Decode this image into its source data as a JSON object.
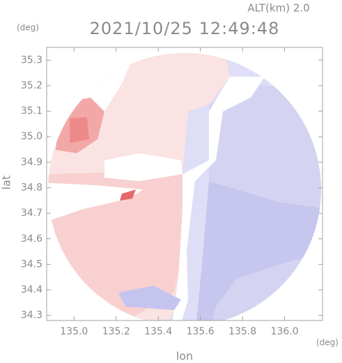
{
  "chart_data": {
    "type": "map",
    "title": "2021/10/25 12:49:48",
    "subtitle": "ALT(km) 2.0",
    "x_label": "lon",
    "y_label": "lat",
    "x_unit": "(deg)",
    "y_unit": "(deg)",
    "xlim": [
      134.87,
      136.18
    ],
    "ylim": [
      34.28,
      35.35
    ],
    "xticks": [
      {
        "value": 135.0,
        "label": "135.0"
      },
      135.2,
      135.4,
      135.6,
      135.8,
      {
        "value": 136.0,
        "label": "136.0"
      }
    ],
    "yticks": [
      34.3,
      34.4,
      34.5,
      34.6,
      34.7,
      34.8,
      34.9,
      {
        "value": 35.0,
        "label": "35.0"
      },
      35.1,
      35.2,
      35.3
    ]
  }
}
